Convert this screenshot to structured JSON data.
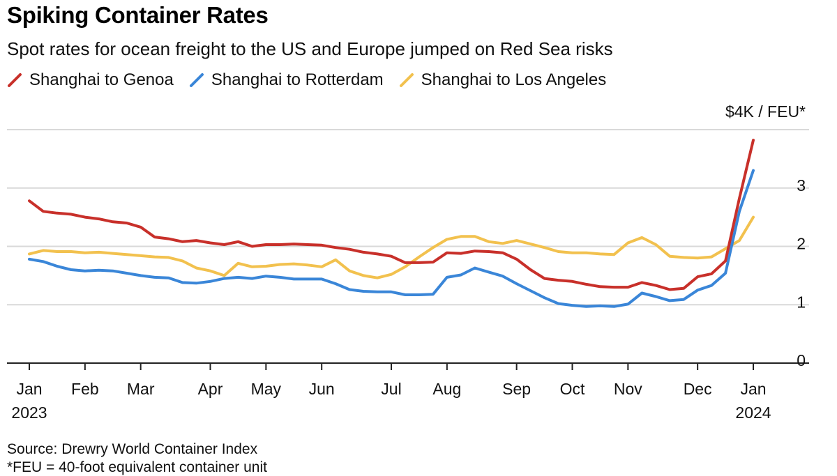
{
  "title": "Spiking Container Rates",
  "subtitle": "Spot rates for ocean freight to the US and Europe jumped on Red Sea risks",
  "source": "Source: Drewry World Container Index",
  "footnote": "*FEU = 40-foot equivalent container unit",
  "colors": {
    "genoa": "#c8302a",
    "rotterdam": "#3a86d8",
    "los_angeles": "#f2c14e",
    "grid": "#d9d9d9",
    "axis": "#222222"
  },
  "chart_data": {
    "type": "line",
    "title": "Spiking Container Rates",
    "subtitle": "Spot rates for ocean freight to the US and Europe jumped on Red Sea risks",
    "unit_label": "$4K / FEU*",
    "y_tick_labels": [
      "0",
      "1",
      "2",
      "3"
    ],
    "ylim": [
      0,
      4
    ],
    "y_axis_side": "right",
    "grid": true,
    "legend_position": "top-left",
    "x_tick_labels": [
      {
        "month": "Jan",
        "year": "2023",
        "t": 0
      },
      {
        "month": "Feb",
        "year": "",
        "t": 1
      },
      {
        "month": "Mar",
        "year": "",
        "t": 2
      },
      {
        "month": "Apr",
        "year": "",
        "t": 3.25
      },
      {
        "month": "May",
        "year": "",
        "t": 4.25
      },
      {
        "month": "Jun",
        "year": "",
        "t": 5.25
      },
      {
        "month": "Jul",
        "year": "",
        "t": 6.5
      },
      {
        "month": "Aug",
        "year": "",
        "t": 7.5
      },
      {
        "month": "Sep",
        "year": "",
        "t": 8.75
      },
      {
        "month": "Oct",
        "year": "",
        "t": 9.75
      },
      {
        "month": "Nov",
        "year": "",
        "t": 10.75
      },
      {
        "month": "Dec",
        "year": "",
        "t": 12
      },
      {
        "month": "Jan",
        "year": "2024",
        "t": 13
      }
    ],
    "series": [
      {
        "name": "Shanghai to Genoa",
        "color_key": "genoa",
        "t": [
          0,
          0.25,
          0.5,
          0.75,
          1,
          1.25,
          1.5,
          1.75,
          2,
          2.25,
          2.5,
          2.75,
          3,
          3.25,
          3.5,
          3.75,
          4,
          4.25,
          4.5,
          4.75,
          5,
          5.25,
          5.5,
          5.75,
          6,
          6.25,
          6.5,
          6.75,
          7,
          7.25,
          7.5,
          7.75,
          8,
          8.25,
          8.5,
          8.75,
          9,
          9.25,
          9.5,
          9.75,
          10,
          10.25,
          10.5,
          10.75,
          11,
          11.25,
          11.5,
          11.75,
          12,
          12.25,
          12.5,
          12.75,
          13
        ],
        "values": [
          2.78,
          2.6,
          2.57,
          2.55,
          2.5,
          2.47,
          2.42,
          2.4,
          2.33,
          2.16,
          2.13,
          2.08,
          2.1,
          2.06,
          2.03,
          2.08,
          2.0,
          2.03,
          2.03,
          2.04,
          2.03,
          2.02,
          1.98,
          1.95,
          1.9,
          1.87,
          1.83,
          1.72,
          1.72,
          1.73,
          1.89,
          1.88,
          1.92,
          1.91,
          1.89,
          1.78,
          1.6,
          1.45,
          1.42,
          1.4,
          1.35,
          1.31,
          1.3,
          1.3,
          1.38,
          1.33,
          1.26,
          1.28,
          1.48,
          1.53,
          1.75,
          2.82,
          3.82
        ]
      },
      {
        "name": "Shanghai to Rotterdam",
        "color_key": "rotterdam",
        "t": [
          0,
          0.25,
          0.5,
          0.75,
          1,
          1.25,
          1.5,
          1.75,
          2,
          2.25,
          2.5,
          2.75,
          3,
          3.25,
          3.5,
          3.75,
          4,
          4.25,
          4.5,
          4.75,
          5,
          5.25,
          5.5,
          5.75,
          6,
          6.25,
          6.5,
          6.75,
          7,
          7.25,
          7.5,
          7.75,
          8,
          8.25,
          8.5,
          8.75,
          9,
          9.25,
          9.5,
          9.75,
          10,
          10.25,
          10.5,
          10.75,
          11,
          11.25,
          11.5,
          11.75,
          12,
          12.25,
          12.5,
          12.75,
          13
        ],
        "values": [
          1.78,
          1.74,
          1.66,
          1.6,
          1.58,
          1.59,
          1.58,
          1.54,
          1.5,
          1.47,
          1.46,
          1.38,
          1.37,
          1.4,
          1.45,
          1.47,
          1.45,
          1.49,
          1.47,
          1.44,
          1.44,
          1.44,
          1.36,
          1.26,
          1.23,
          1.22,
          1.22,
          1.17,
          1.17,
          1.18,
          1.47,
          1.51,
          1.63,
          1.56,
          1.49,
          1.36,
          1.24,
          1.12,
          1.02,
          0.99,
          0.97,
          0.98,
          0.97,
          1.01,
          1.2,
          1.14,
          1.07,
          1.09,
          1.25,
          1.33,
          1.54,
          2.6,
          3.3
        ]
      },
      {
        "name": "Shanghai to Los Angeles",
        "color_key": "los_angeles",
        "t": [
          0,
          0.25,
          0.5,
          0.75,
          1,
          1.25,
          1.5,
          1.75,
          2,
          2.25,
          2.5,
          2.75,
          3,
          3.25,
          3.5,
          3.75,
          4,
          4.25,
          4.5,
          4.75,
          5,
          5.25,
          5.5,
          5.75,
          6,
          6.25,
          6.5,
          6.75,
          7,
          7.25,
          7.5,
          7.75,
          8,
          8.25,
          8.5,
          8.75,
          9,
          9.25,
          9.5,
          9.75,
          10,
          10.25,
          10.5,
          10.75,
          11,
          11.25,
          11.5,
          11.75,
          12,
          12.25,
          12.5,
          12.75,
          13
        ],
        "values": [
          1.87,
          1.93,
          1.91,
          1.91,
          1.89,
          1.9,
          1.88,
          1.86,
          1.84,
          1.82,
          1.81,
          1.75,
          1.63,
          1.58,
          1.5,
          1.71,
          1.65,
          1.66,
          1.69,
          1.7,
          1.68,
          1.65,
          1.77,
          1.58,
          1.5,
          1.46,
          1.52,
          1.65,
          1.82,
          1.98,
          2.12,
          2.17,
          2.17,
          2.08,
          2.05,
          2.1,
          2.04,
          1.98,
          1.91,
          1.89,
          1.89,
          1.87,
          1.86,
          2.06,
          2.15,
          2.03,
          1.83,
          1.81,
          1.8,
          1.82,
          1.96,
          2.1,
          2.5
        ]
      }
    ]
  }
}
